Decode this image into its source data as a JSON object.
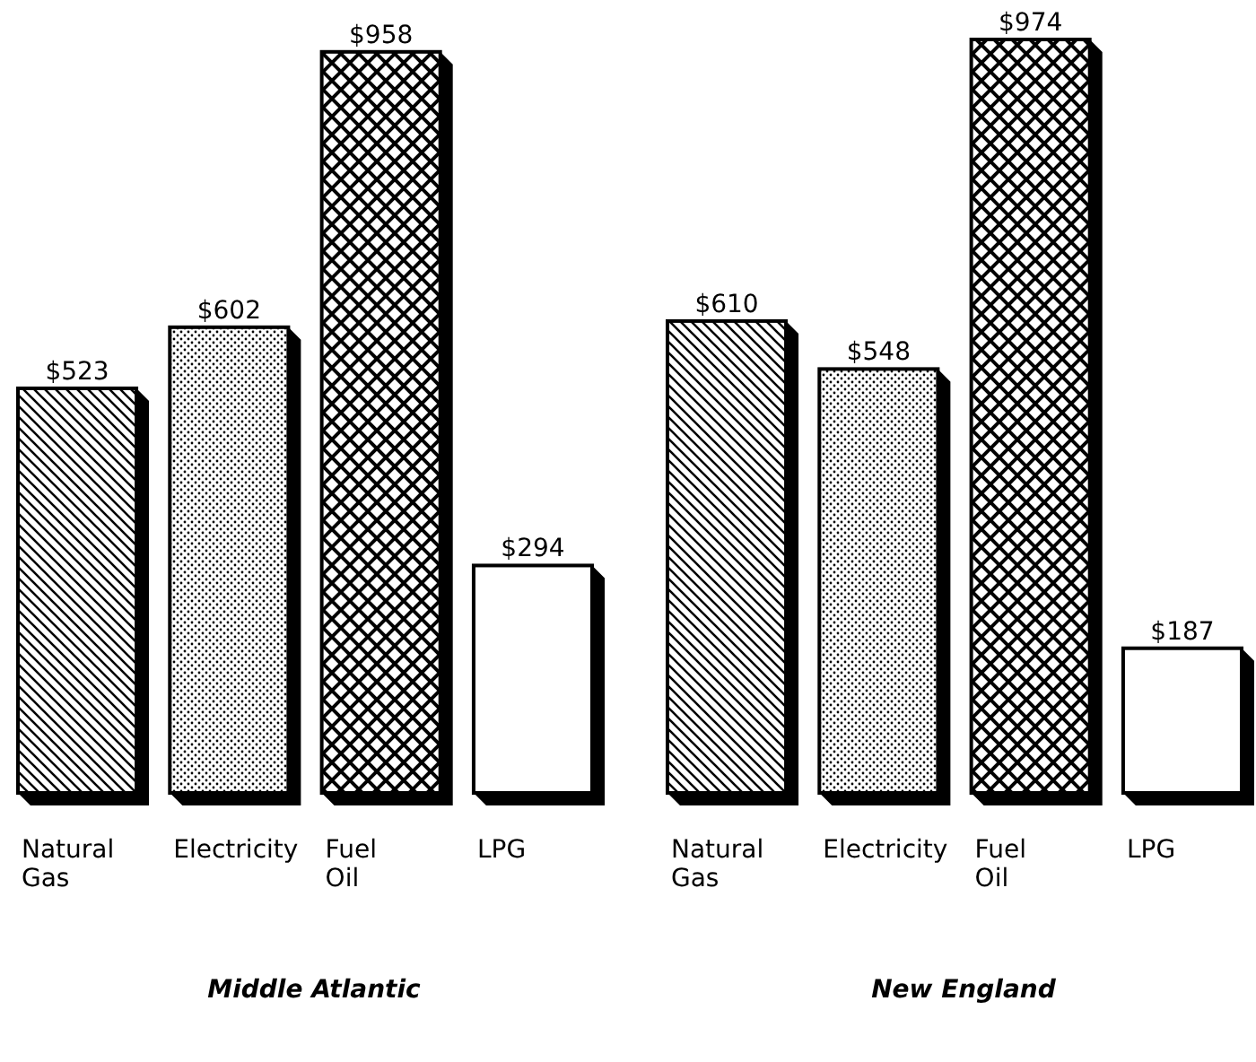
{
  "chart_data": [
    {
      "type": "bar",
      "title": "Middle Atlantic",
      "categories": [
        "Natural Gas",
        "Electricity",
        "Fuel Oil",
        "LPG"
      ],
      "values": [
        523,
        602,
        958,
        294
      ],
      "value_labels": [
        "$523",
        "$602",
        "$958",
        "$294"
      ],
      "relative": false
    },
    {
      "type": "bar",
      "title": "New England",
      "categories": [
        "Natural Gas",
        "Electricity",
        "Fuel Oil",
        "LPG"
      ],
      "values": [
        610,
        548,
        974,
        187
      ],
      "value_labels": [
        "$610",
        "$548",
        "$974",
        "$187"
      ],
      "relative": false
    }
  ]
}
